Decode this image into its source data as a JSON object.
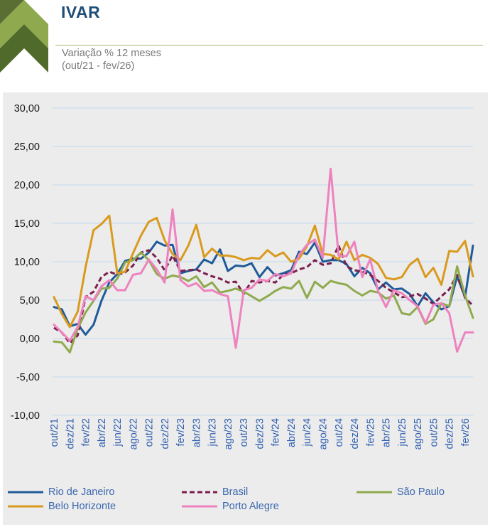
{
  "header": {
    "title": "IVAR",
    "subtitle_line1": "Variação % 12 meses",
    "subtitle_line2": "(out/21 - fev/26)"
  },
  "colors": {
    "accent_green": "#8faa4e",
    "title_blue": "#1f4e79",
    "grid": "#bfd8ee",
    "label_blue": "#2f5fb0"
  },
  "chart_data": {
    "type": "line",
    "ylim": [
      -10,
      30
    ],
    "yticks": [
      "30,00",
      "25,00",
      "20,00",
      "15,00",
      "10,00",
      "5,00",
      "0,00",
      "-5,00",
      "-10,00"
    ],
    "ytick_values": [
      30,
      25,
      20,
      15,
      10,
      5,
      0,
      -5,
      -10
    ],
    "xtick_labels": [
      "out/21",
      "dez/21",
      "fev/22",
      "abr/22",
      "jun/22",
      "ago/22",
      "out/22",
      "dez/22",
      "fev/23",
      "abr/23",
      "jun/23",
      "ago/23",
      "out/23",
      "dez/23",
      "fev/24",
      "abr/24",
      "jun/24",
      "ago/24",
      "out/24",
      "dez/24",
      "fev/25",
      "abr/25",
      "jun/25",
      "ago/25",
      "out/25",
      "dez/25",
      "fev/26"
    ],
    "grid": true,
    "legend_position": "bottom",
    "series": [
      {
        "name": "Rio de Janeiro",
        "color": "#1f5b99",
        "dash": false,
        "values": [
          4.1,
          3.8,
          1.6,
          1.9,
          0.5,
          1.8,
          4.9,
          7.3,
          8.4,
          10.1,
          10.4,
          10.4,
          11.2,
          12.6,
          12.1,
          12.2,
          8.5,
          8.8,
          9.0,
          10.3,
          9.8,
          11.6,
          8.8,
          9.5,
          9.4,
          9.8,
          8.0,
          9.3,
          8.2,
          8.5,
          8.9,
          11.3,
          11.0,
          12.5,
          10.0,
          10.2,
          10.2,
          9.7,
          8.1,
          9.2,
          8.5,
          6.4,
          7.3,
          6.4,
          6.5,
          5.8,
          4.2,
          5.9,
          4.7,
          3.8,
          4.2,
          8.1,
          5.4,
          12.1
        ]
      },
      {
        "name": "Brasil",
        "color": "#7b1f4e",
        "dash": true,
        "values": [
          1.4,
          0.8,
          -0.6,
          0.4,
          5.4,
          6.1,
          8.0,
          8.7,
          8.3,
          8.6,
          9.5,
          11.2,
          11.5,
          10.5,
          8.9,
          10.8,
          8.8,
          8.9,
          9.0,
          8.5,
          8.1,
          7.8,
          7.3,
          7.4,
          5.8,
          7.5,
          7.3,
          7.5,
          7.3,
          8.3,
          8.5,
          9.0,
          9.3,
          10.2,
          9.6,
          9.8,
          12.1,
          9.4,
          8.9,
          8.7,
          8.3,
          7.5,
          6.6,
          6.0,
          5.4,
          5.5,
          5.8,
          5.2,
          4.5,
          5.5,
          6.4,
          8.3,
          5.3,
          4.3
        ]
      },
      {
        "name": "São Paulo",
        "color": "#8faa4e",
        "dash": false,
        "values": [
          -0.4,
          -0.5,
          -1.8,
          1.3,
          3.4,
          4.9,
          6.5,
          6.6,
          7.8,
          9.9,
          10.2,
          11.2,
          10.2,
          8.4,
          7.8,
          8.2,
          8.0,
          7.5,
          8.1,
          6.7,
          7.3,
          6.0,
          6.2,
          6.5,
          6.1,
          5.5,
          4.9,
          5.5,
          6.2,
          6.7,
          6.5,
          7.5,
          5.3,
          7.4,
          6.6,
          7.5,
          7.2,
          7.0,
          6.2,
          5.6,
          6.2,
          6.0,
          5.2,
          5.6,
          3.3,
          3.1,
          4.1,
          1.9,
          2.5,
          4.6,
          4.2,
          9.4,
          5.6,
          2.7
        ]
      },
      {
        "name": "Belo Horizonte",
        "color": "#d99a1e",
        "dash": false,
        "values": [
          5.4,
          3.2,
          1.5,
          3.5,
          9.3,
          14.1,
          14.9,
          16.0,
          8.5,
          8.7,
          11.1,
          13.4,
          15.2,
          15.7,
          12.8,
          11.0,
          10.2,
          12.1,
          14.8,
          10.6,
          11.7,
          10.8,
          10.8,
          10.6,
          10.2,
          10.5,
          10.4,
          11.5,
          10.7,
          11.2,
          10.0,
          10.4,
          12.0,
          14.7,
          11.0,
          10.9,
          10.3,
          12.6,
          10.2,
          10.9,
          10.5,
          9.7,
          7.9,
          7.7,
          8.0,
          9.6,
          10.4,
          8.0,
          9.2,
          7.0,
          11.4,
          11.3,
          12.7,
          8.1
        ]
      },
      {
        "name": "Porto Alegre",
        "color": "#ee82be",
        "dash": false,
        "values": [
          1.8,
          0.8,
          -0.3,
          1.5,
          5.5,
          5.0,
          6.8,
          7.6,
          6.3,
          6.3,
          8.3,
          8.5,
          10.3,
          9.0,
          7.3,
          16.8,
          7.6,
          6.8,
          7.2,
          6.2,
          6.3,
          5.8,
          5.5,
          -1.2,
          6.3,
          6.6,
          7.7,
          7.5,
          8.4,
          8.1,
          8.5,
          10.9,
          12.2,
          12.9,
          10.5,
          22.1,
          10.8,
          10.7,
          12.6,
          8.0,
          10.3,
          6.2,
          4.1,
          6.3,
          5.9,
          5.0,
          4.2,
          2.0,
          4.4,
          4.6,
          3.3,
          -1.7,
          0.8,
          0.8
        ]
      }
    ]
  },
  "legend": [
    {
      "label": "Rio de Janeiro",
      "color": "#1f5b99",
      "dash": false
    },
    {
      "label": "Brasil",
      "color": "#7b1f4e",
      "dash": true
    },
    {
      "label": "São Paulo",
      "color": "#8faa4e",
      "dash": false
    },
    {
      "label": "Belo Horizonte",
      "color": "#d99a1e",
      "dash": false
    },
    {
      "label": "Porto Alegre",
      "color": "#ee82be",
      "dash": false
    }
  ]
}
